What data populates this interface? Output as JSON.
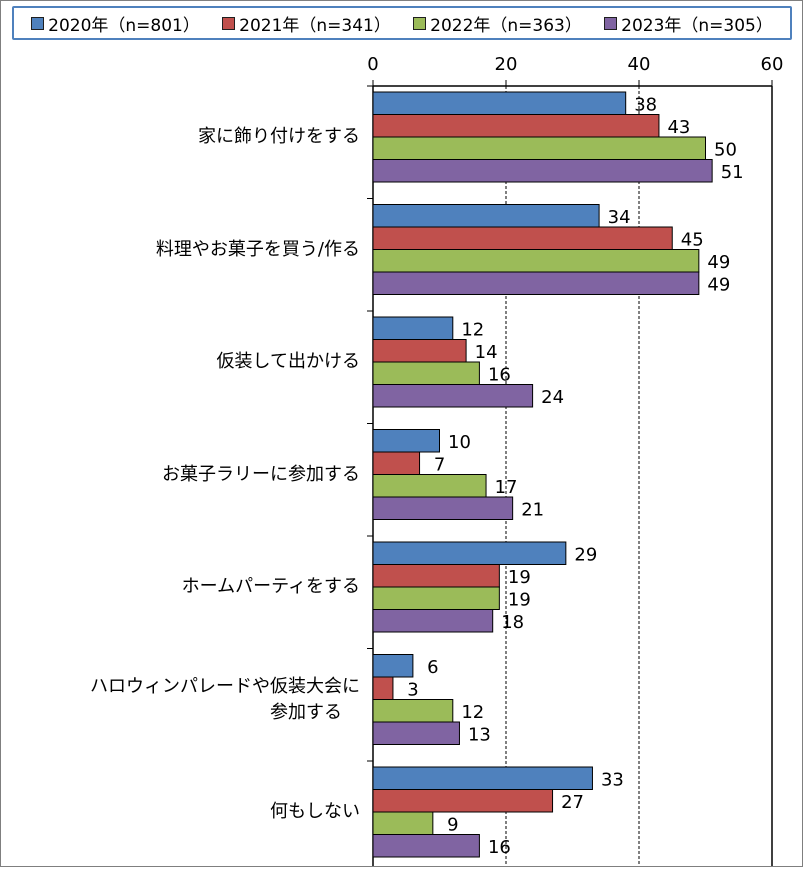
{
  "chart_data": {
    "type": "bar",
    "orientation": "horizontal",
    "categories": [
      "家に飾り付けをする",
      "料理やお菓子を買う/作る",
      "仮装して出かける",
      "お菓子ラリーに参加する",
      "ホームパーティをする",
      [
        "ハロウィンパレードや仮装大会に",
        "参加する"
      ],
      "何もしない"
    ],
    "series": [
      {
        "name": "2020年（n=801）",
        "color": "#4f81bd",
        "values": [
          38,
          34,
          12,
          10,
          29,
          6,
          33
        ]
      },
      {
        "name": "2021年（n=341）",
        "color": "#c0504d",
        "values": [
          43,
          45,
          14,
          7,
          19,
          3,
          27
        ]
      },
      {
        "name": "2022年（n=363）",
        "color": "#9bbb59",
        "values": [
          50,
          49,
          16,
          17,
          19,
          12,
          9
        ]
      },
      {
        "name": "2023年（n=305）",
        "color": "#8064a2",
        "values": [
          51,
          49,
          24,
          21,
          18,
          13,
          16
        ]
      }
    ],
    "xlim": [
      0,
      60
    ],
    "xticks": [
      "0",
      "20",
      "40",
      "60"
    ],
    "grid": "vertical dashed at major ticks",
    "legend_position": "top"
  }
}
